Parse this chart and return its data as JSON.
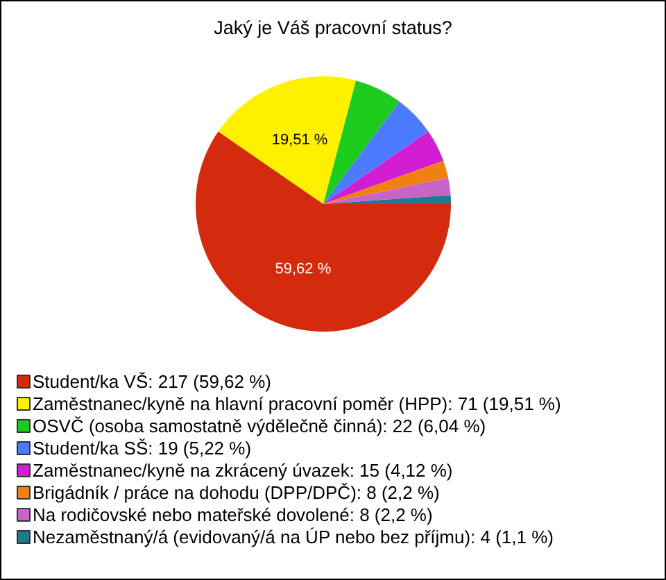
{
  "chart_data": {
    "type": "pie",
    "title": "Jaký je Váš pracovní status?",
    "categories": [
      "Student/ka VŠ: 217 (59,62 %)",
      "Zaměstnanec/kyně na hlavní pracovní poměr (HPP): 71 (19,51 %)",
      "OSVČ (osoba samostatně výdělečně činná): 22 (6,04 %)",
      "Student/ka SŠ: 19 (5,22 %)",
      "Zaměstnanec/kyně na zkrácený úvazek: 15 (4,12 %)",
      "Brigádník / práce na dohodu (DPP/DPČ): 8 (2,2 %)",
      "Na rodičovské nebo mateřské dovolené: 8 (2,2 %)",
      "Nezaměstnaný/á (evidovaný/á na ÚP nebo bez příjmu): 4 (1,1 %)"
    ],
    "values": [
      59.62,
      19.51,
      6.04,
      5.22,
      4.12,
      2.2,
      2.2,
      1.1
    ],
    "colors": [
      "#d42a0e",
      "#fff000",
      "#1ccb1c",
      "#4d7bff",
      "#d21ed2",
      "#f08010",
      "#c864c8",
      "#1e7a8c"
    ],
    "value_labels": [
      "59,62 %",
      "19,51 %",
      null,
      null,
      null,
      null,
      null,
      null
    ],
    "legend": "bottom left"
  }
}
